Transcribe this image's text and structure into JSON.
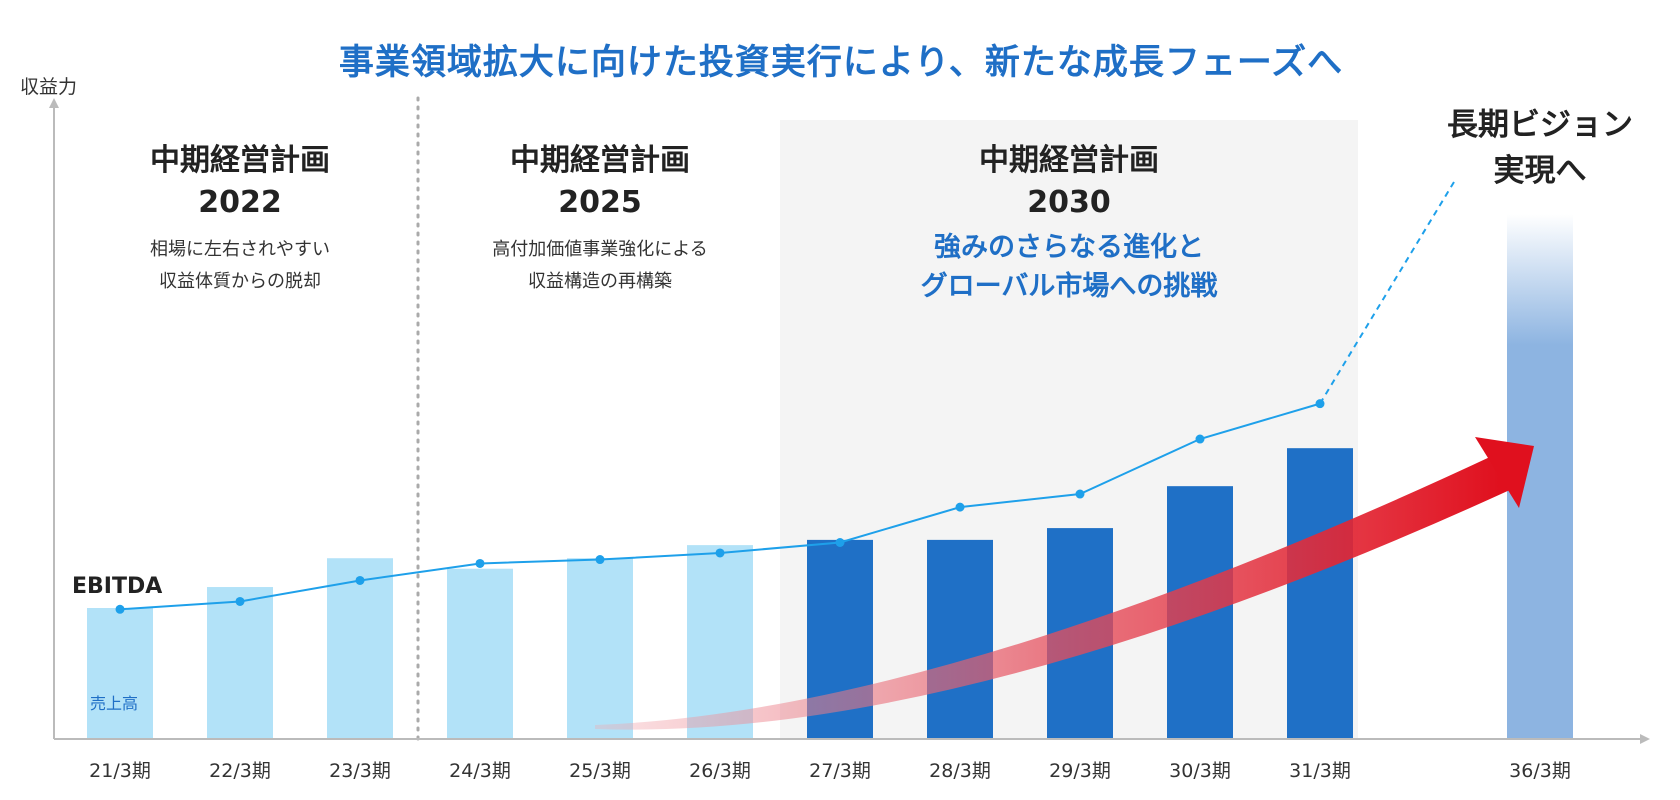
{
  "title": "事業領域拡大に向けた投資実行により、新たな成長フェーズへ",
  "y_axis_label": "収益力",
  "sections": [
    {
      "heading": "中期経営計画",
      "year": "2022",
      "lines": [
        "相場に左右されやすい",
        "収益体質からの脱却"
      ]
    },
    {
      "heading": "中期経営計画",
      "year": "2025",
      "lines": [
        "高付加価値事業強化による",
        "収益構造の再構築"
      ]
    },
    {
      "heading": "中期経営計画",
      "year": "2030",
      "lines": [
        "強みのさらなる進化と",
        "グローバル市場への挑戦"
      ]
    }
  ],
  "vision": {
    "line1": "長期ビジョン",
    "line2": "実現へ"
  },
  "colors": {
    "title": "#1f6fc6",
    "past_bar": "#b2e2f8",
    "plan_bar": "#1f70c6",
    "vision_bar": "#8db4e1",
    "ebitda_line": "#1ea0ea",
    "arrow": "#e0101e",
    "plan_bg": "#f4f4f4"
  },
  "chart_data": {
    "type": "bar+line",
    "title": "事業領域拡大に向けた投資実行により、新たな成長フェーズへ",
    "ylabel": "収益力",
    "categories": [
      "21/3期",
      "22/3期",
      "23/3期",
      "24/3期",
      "25/3期",
      "26/3期",
      "27/3期",
      "28/3期",
      "29/3期",
      "30/3期",
      "31/3期",
      "36/3期"
    ],
    "series": [
      {
        "name": "売上高",
        "kind": "bar",
        "values": [
          100,
          116,
          138,
          130,
          138,
          148,
          152,
          152,
          161,
          193,
          222,
          null
        ]
      },
      {
        "name": "EBITDA",
        "kind": "line",
        "values": [
          99,
          105,
          121,
          134,
          137,
          142,
          150,
          177,
          187,
          229,
          256,
          null
        ]
      }
    ],
    "vision_bar_category": "36/3期",
    "plan_2030_categories": [
      "27/3期",
      "28/3期",
      "29/3期",
      "30/3期",
      "31/3期"
    ],
    "y_axis_ticks": "none",
    "grid": false
  }
}
